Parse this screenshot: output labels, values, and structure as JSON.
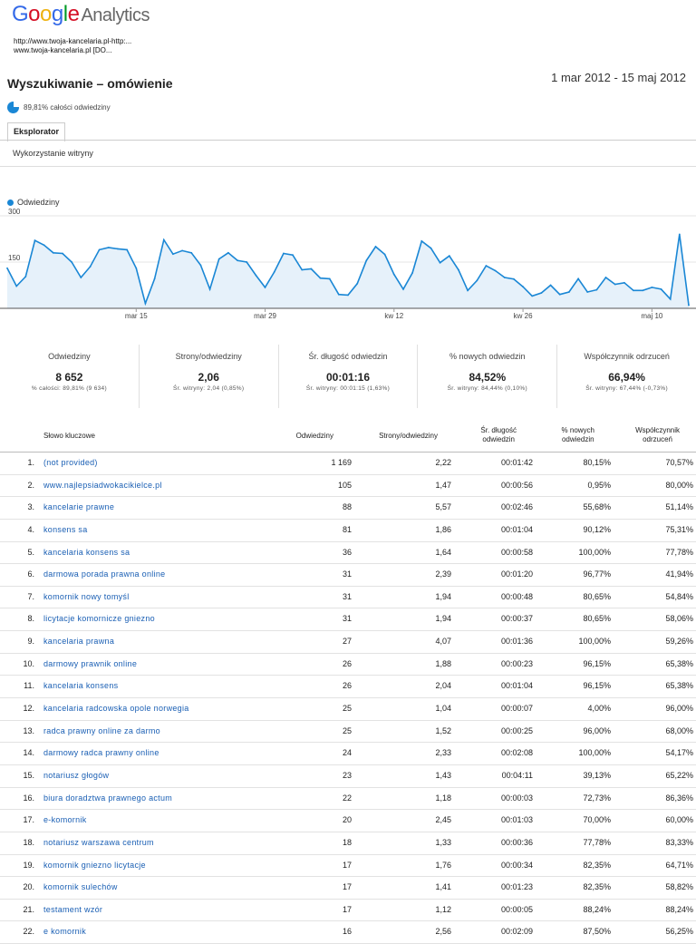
{
  "app": {
    "brand_google": "Google",
    "brand_analytics": "Analytics"
  },
  "site": {
    "url_line1": "http://www.twoja-kancelaria.pl-http:...",
    "url_line2": "www.twoja-kancelaria.pl [DO..."
  },
  "report": {
    "title": "Wyszukiwanie – omówienie",
    "date_range": "1 mar 2012 - 15 maj 2012",
    "segment": "89,81% całości odwiedziny",
    "tab": "Eksplorator",
    "subtab": "Wykorzystanie witryny"
  },
  "colors": {
    "series": "#1a87d5",
    "fill": "#e6f1fa",
    "link": "#1a5fb4"
  },
  "chart_data": {
    "type": "area",
    "legend": "Odwiedziny",
    "y_ticks": [
      "300",
      "150"
    ],
    "ylim": [
      0,
      300
    ],
    "x_tick_labels": [
      "mar 15",
      "mar 29",
      "kw 12",
      "kw 26",
      "maj 10"
    ],
    "x_tick_index": [
      14,
      28,
      42,
      56,
      70
    ],
    "series": [
      {
        "name": "Odwiedziny",
        "values": [
          130,
          72,
          103,
          220,
          205,
          180,
          178,
          150,
          100,
          135,
          190,
          197,
          193,
          190,
          130,
          16,
          96,
          222,
          176,
          187,
          180,
          140,
          62,
          160,
          180,
          155,
          150,
          107,
          68,
          118,
          178,
          173,
          125,
          128,
          98,
          96,
          45,
          43,
          80,
          155,
          200,
          175,
          110,
          62,
          115,
          218,
          195,
          148,
          170,
          125,
          58,
          90,
          138,
          122,
          100,
          95,
          70,
          40,
          50,
          75,
          45,
          53,
          96,
          53,
          60,
          100,
          78,
          83,
          58,
          58,
          68,
          62,
          30,
          240,
          10
        ],
        "note": ""
      }
    ]
  },
  "metrics": [
    {
      "label": "Odwiedziny",
      "value": "8 652",
      "sub": "% całości: 89,81% (9 634)"
    },
    {
      "label": "Strony/odwiedziny",
      "value": "2,06",
      "sub": "Śr. witryny: 2,04 (0,85%)"
    },
    {
      "label": "Śr. długość odwiedzin",
      "value": "00:01:16",
      "sub": "Śr. witryny: 00:01:15 (1,63%)"
    },
    {
      "label": "% nowych odwiedzin",
      "value": "84,52%",
      "sub": "Śr. witryny: 84,44% (0,10%)"
    },
    {
      "label": "Współczynnik odrzuceń",
      "value": "66,94%",
      "sub": "Śr. witryny: 67,44% (-0,73%)"
    }
  ],
  "table": {
    "headers": {
      "keyword": "Słowo kluczowe",
      "visits": "Odwiedziny",
      "pages": "Strony/odwiedziny",
      "duration_1": "Śr. długość",
      "duration_2": "odwiedzin",
      "new_1": "% nowych",
      "new_2": "odwiedzin",
      "bounce_1": "Współczynnik",
      "bounce_2": "odrzuceń"
    },
    "rows": [
      {
        "n": "1.",
        "kw": "(not provided)",
        "v": "1 169",
        "p": "2,22",
        "d": "00:01:42",
        "nw": "80,15%",
        "b": "70,57%"
      },
      {
        "n": "2.",
        "kw": "www.najlepsiadwokacikielce.pl",
        "v": "105",
        "p": "1,47",
        "d": "00:00:56",
        "nw": "0,95%",
        "b": "80,00%"
      },
      {
        "n": "3.",
        "kw": "kancelarie prawne",
        "v": "88",
        "p": "5,57",
        "d": "00:02:46",
        "nw": "55,68%",
        "b": "51,14%"
      },
      {
        "n": "4.",
        "kw": "konsens sa",
        "v": "81",
        "p": "1,86",
        "d": "00:01:04",
        "nw": "90,12%",
        "b": "75,31%"
      },
      {
        "n": "5.",
        "kw": "kancelaria konsens sa",
        "v": "36",
        "p": "1,64",
        "d": "00:00:58",
        "nw": "100,00%",
        "b": "77,78%"
      },
      {
        "n": "6.",
        "kw": "darmowa porada prawna online",
        "v": "31",
        "p": "2,39",
        "d": "00:01:20",
        "nw": "96,77%",
        "b": "41,94%"
      },
      {
        "n": "7.",
        "kw": "komornik nowy tomyśl",
        "v": "31",
        "p": "1,94",
        "d": "00:00:48",
        "nw": "80,65%",
        "b": "54,84%"
      },
      {
        "n": "8.",
        "kw": "licytacje komornicze gniezno",
        "v": "31",
        "p": "1,94",
        "d": "00:00:37",
        "nw": "80,65%",
        "b": "58,06%"
      },
      {
        "n": "9.",
        "kw": "kancelaria prawna",
        "v": "27",
        "p": "4,07",
        "d": "00:01:36",
        "nw": "100,00%",
        "b": "59,26%"
      },
      {
        "n": "10.",
        "kw": "darmowy prawnik online",
        "v": "26",
        "p": "1,88",
        "d": "00:00:23",
        "nw": "96,15%",
        "b": "65,38%"
      },
      {
        "n": "11.",
        "kw": "kancelaria konsens",
        "v": "26",
        "p": "2,04",
        "d": "00:01:04",
        "nw": "96,15%",
        "b": "65,38%"
      },
      {
        "n": "12.",
        "kw": "kancelaria radcowska opole norwegia",
        "v": "25",
        "p": "1,04",
        "d": "00:00:07",
        "nw": "4,00%",
        "b": "96,00%"
      },
      {
        "n": "13.",
        "kw": "radca prawny online za darmo",
        "v": "25",
        "p": "1,52",
        "d": "00:00:25",
        "nw": "96,00%",
        "b": "68,00%"
      },
      {
        "n": "14.",
        "kw": "darmowy radca prawny online",
        "v": "24",
        "p": "2,33",
        "d": "00:02:08",
        "nw": "100,00%",
        "b": "54,17%"
      },
      {
        "n": "15.",
        "kw": "notariusz głogów",
        "v": "23",
        "p": "1,43",
        "d": "00:04:11",
        "nw": "39,13%",
        "b": "65,22%"
      },
      {
        "n": "16.",
        "kw": "biura doradztwa prawnego actum",
        "v": "22",
        "p": "1,18",
        "d": "00:00:03",
        "nw": "72,73%",
        "b": "86,36%"
      },
      {
        "n": "17.",
        "kw": "e-komornik",
        "v": "20",
        "p": "2,45",
        "d": "00:01:03",
        "nw": "70,00%",
        "b": "60,00%"
      },
      {
        "n": "18.",
        "kw": "notariusz warszawa centrum",
        "v": "18",
        "p": "1,33",
        "d": "00:00:36",
        "nw": "77,78%",
        "b": "83,33%"
      },
      {
        "n": "19.",
        "kw": "komornik gniezno licytacje",
        "v": "17",
        "p": "1,76",
        "d": "00:00:34",
        "nw": "82,35%",
        "b": "64,71%"
      },
      {
        "n": "20.",
        "kw": "komornik sulechów",
        "v": "17",
        "p": "1,41",
        "d": "00:01:23",
        "nw": "82,35%",
        "b": "58,82%"
      },
      {
        "n": "21.",
        "kw": "testament wzór",
        "v": "17",
        "p": "1,12",
        "d": "00:00:05",
        "nw": "88,24%",
        "b": "88,24%"
      },
      {
        "n": "22.",
        "kw": "e komornik",
        "v": "16",
        "p": "2,56",
        "d": "00:02:09",
        "nw": "87,50%",
        "b": "56,25%"
      }
    ]
  }
}
